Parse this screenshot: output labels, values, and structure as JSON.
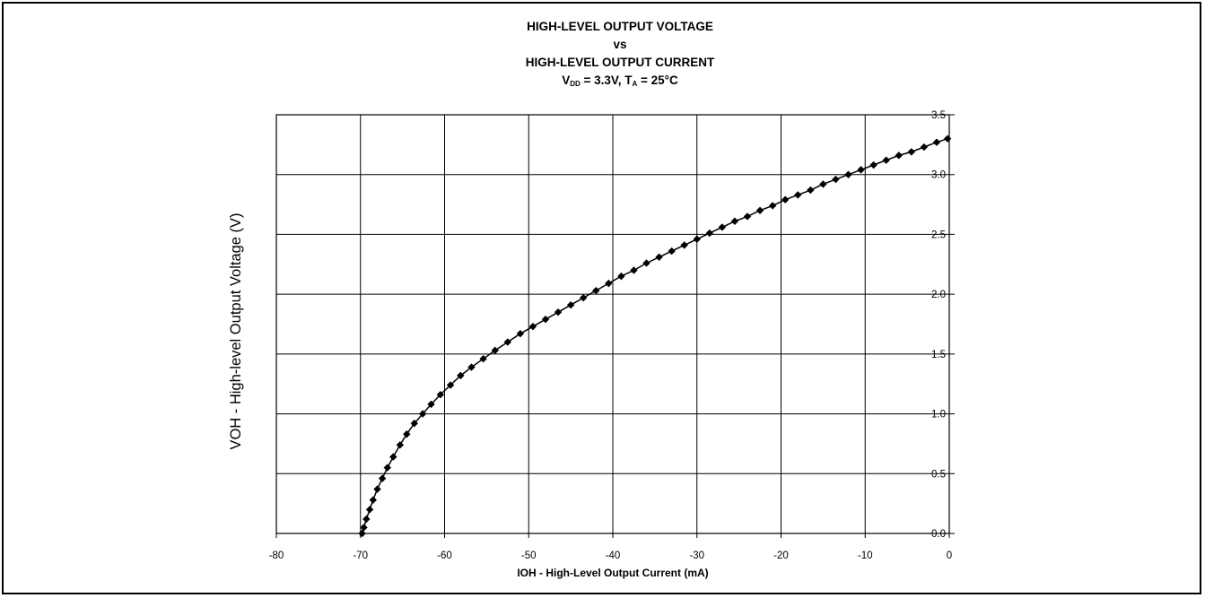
{
  "chart_data": {
    "type": "scatter",
    "title_lines": [
      "HIGH-LEVEL OUTPUT VOLTAGE",
      "vs",
      "HIGH-LEVEL OUTPUT CURRENT"
    ],
    "condition": {
      "vdd_sym": "V",
      "vdd_sub": "DD",
      "vdd_val": " = 3.3V, ",
      "ta_sym": "T",
      "ta_sub": "A",
      "ta_val": " = 25°C"
    },
    "xlabel": "IOH - High-Level Output Current (mA)",
    "ylabel": "VOH - High-level Output Voltage (V)",
    "xlim": [
      -80,
      0
    ],
    "ylim": [
      0.0,
      3.5
    ],
    "x_ticks": [
      "-80",
      "-70",
      "-60",
      "-50",
      "-40",
      "-30",
      "-20",
      "-10",
      "0"
    ],
    "y_ticks": [
      "0.0",
      "0.5",
      "1.0",
      "1.5",
      "2.0",
      "2.5",
      "3.0",
      "3.5"
    ],
    "grid": true,
    "marker": "diamond",
    "color": "#000000",
    "series": [
      {
        "x": [
          -69.8,
          -69.6,
          -69.3,
          -68.9,
          -68.5,
          -68.0,
          -67.4,
          -66.8,
          -66.1,
          -65.3,
          -64.5,
          -63.6,
          -62.6,
          -61.6,
          -60.5,
          -59.3,
          -58.1,
          -56.8,
          -55.4,
          -54.0,
          -52.5,
          -51.0,
          -49.5,
          -48.0,
          -46.5,
          -45.0,
          -43.5,
          -42.0,
          -40.5,
          -39.0,
          -37.5,
          -36.0,
          -34.5,
          -33.0,
          -31.5,
          -30.0,
          -28.5,
          -27.0,
          -25.5,
          -24.0,
          -22.5,
          -21.0,
          -19.5,
          -18.0,
          -16.5,
          -15.0,
          -13.5,
          -12.0,
          -10.5,
          -9.0,
          -7.5,
          -6.0,
          -4.5,
          -3.0,
          -1.5,
          -0.2
        ],
        "y": [
          0.0,
          0.05,
          0.12,
          0.2,
          0.28,
          0.37,
          0.46,
          0.55,
          0.64,
          0.74,
          0.83,
          0.92,
          1.0,
          1.08,
          1.16,
          1.24,
          1.32,
          1.39,
          1.46,
          1.53,
          1.6,
          1.67,
          1.73,
          1.79,
          1.85,
          1.91,
          1.97,
          2.03,
          2.09,
          2.15,
          2.2,
          2.26,
          2.31,
          2.36,
          2.41,
          2.46,
          2.51,
          2.56,
          2.61,
          2.65,
          2.7,
          2.74,
          2.79,
          2.83,
          2.87,
          2.92,
          2.96,
          3.0,
          3.04,
          3.08,
          3.12,
          3.16,
          3.19,
          3.23,
          3.27,
          3.3
        ]
      }
    ]
  }
}
